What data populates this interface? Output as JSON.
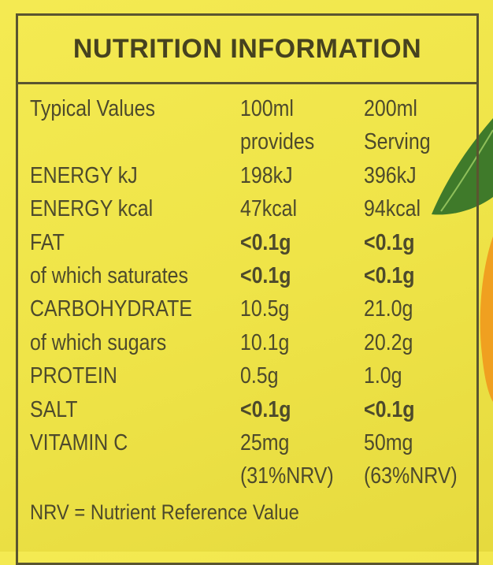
{
  "header": {
    "title": "NUTRITION INFORMATION"
  },
  "table": {
    "rows": [
      [
        [
          "Typical Values"
        ],
        [
          "100ml",
          "provides"
        ],
        [
          "200ml",
          "Serving"
        ]
      ],
      [
        [
          "ENERGY kJ"
        ],
        [
          "198kJ"
        ],
        [
          "396kJ"
        ]
      ],
      [
        [
          "ENERGY kcal"
        ],
        [
          "47kcal"
        ],
        [
          "94kcal"
        ]
      ],
      [
        [
          "FAT"
        ],
        [
          "<0.1g"
        ],
        [
          "<0.1g"
        ]
      ],
      [
        [
          "of which saturates"
        ],
        [
          "<0.1g"
        ],
        [
          "<0.1g"
        ]
      ],
      [
        [
          "CARBOHYDRATE"
        ],
        [
          "10.5g"
        ],
        [
          "21.0g"
        ]
      ],
      [
        [
          "of which sugars"
        ],
        [
          "10.1g"
        ],
        [
          "20.2g"
        ]
      ],
      [
        [
          "PROTEIN"
        ],
        [
          "0.5g"
        ],
        [
          "1.0g"
        ]
      ],
      [
        [
          "SALT"
        ],
        [
          "<0.1g"
        ],
        [
          "<0.1g"
        ]
      ],
      [
        [
          "VITAMIN C"
        ],
        [
          "25mg",
          "(31%NRV)"
        ],
        [
          "50mg",
          "(63%NRV)"
        ]
      ]
    ]
  },
  "footer": {
    "note": "NRV = Nutrient Reference Value"
  }
}
